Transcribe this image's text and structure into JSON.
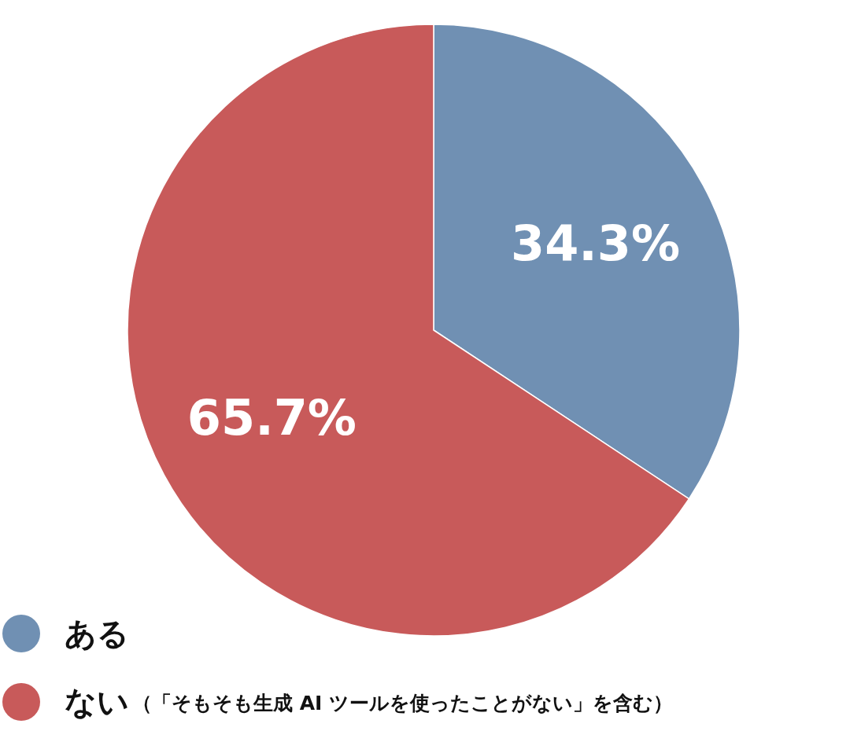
{
  "chart_data": {
    "type": "pie",
    "categories": [
      "ある",
      "ない"
    ],
    "values": [
      34.3,
      65.7
    ],
    "colors": [
      "#7090b3",
      "#c85a5a"
    ],
    "data_labels": true,
    "value_labels": [
      "34.3%",
      "65.7%"
    ],
    "legend": "bottom left",
    "annotations": [
      "（「そもそも生成 AI ツールを使ったことがない」を含む）"
    ]
  }
}
